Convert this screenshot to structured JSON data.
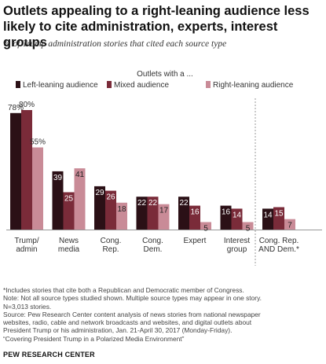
{
  "title": "Outlets appealing to a right-leaning audience less likely to cite administration, experts, interest groups",
  "subtitle": "% of Trump administration stories that cited each source type",
  "legend_title": "Outlets with a ...",
  "footnotes": [
    "*Includes stories that cite both a Republican and Democratic member of Congress.",
    "Note: Not all source types studied shown. Multiple source types may appear in one story.",
    "N=3,013 stories.",
    "Source: Pew Research Center content analysis of news stories from national newspaper",
    "websites, radio, cable and network broadcasts and websites, and digital outlets about",
    "President Trump or his administration, Jan. 21-April 30, 2017 (Monday-Friday).",
    "“Covering President Trump in a Polarized Media Environment”"
  ],
  "brand": "PEW RESEARCH CENTER",
  "chart_data": {
    "type": "bar",
    "categories": [
      [
        "Trump/",
        "admin"
      ],
      [
        "News",
        "media"
      ],
      [
        "Cong.",
        "Rep."
      ],
      [
        "Cong.",
        "Dem."
      ],
      [
        "Expert"
      ],
      [
        "Interest",
        "group"
      ],
      [
        "Cong. Rep.",
        "AND Dem.*"
      ]
    ],
    "series": [
      {
        "name": "Left-leaning audience",
        "color": "#2b1016",
        "values": [
          78,
          39,
          29,
          22,
          22,
          16,
          14
        ]
      },
      {
        "name": "Mixed audience",
        "color": "#7a2b39",
        "values": [
          80,
          25,
          26,
          22,
          16,
          14,
          15
        ]
      },
      {
        "name": "Right-leaning audience",
        "color": "#c98b97",
        "values": [
          55,
          41,
          18,
          17,
          5,
          5,
          7
        ]
      }
    ],
    "value_labels": [
      [
        "78%",
        "39",
        "29",
        "22",
        "22",
        "16",
        "14"
      ],
      [
        "80%",
        "25",
        "26",
        "22",
        "16",
        "14",
        "15"
      ],
      [
        "55%",
        "41",
        "18",
        "17",
        "5",
        "5",
        "7"
      ]
    ],
    "ylim": [
      0,
      80
    ],
    "legend_position": "top",
    "grid": false,
    "separator_before_category": 6
  }
}
